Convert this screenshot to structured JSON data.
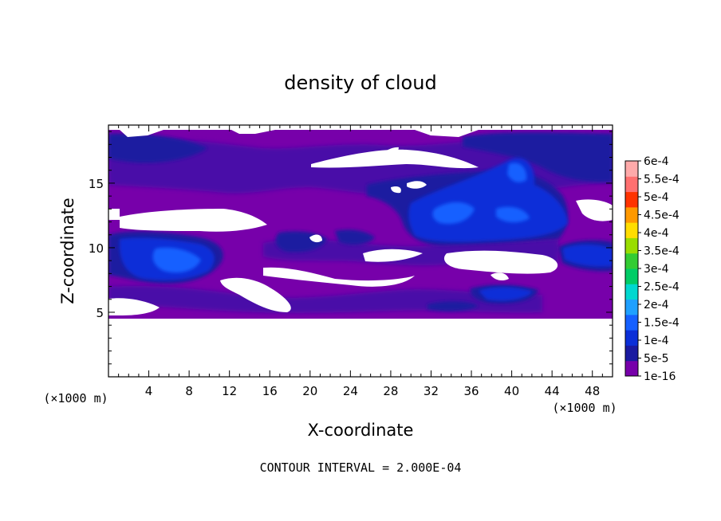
{
  "chart_data": {
    "type": "heatmap",
    "title": "density of cloud",
    "xlabel": "X-coordinate",
    "ylabel": "Z-coordinate",
    "x_unit": "(×1000 m)",
    "y_unit": "(×1000 m)",
    "xlim": [
      0,
      50
    ],
    "ylim": [
      0,
      19.5
    ],
    "x_ticks": [
      4,
      8,
      12,
      16,
      20,
      24,
      28,
      32,
      36,
      40,
      44,
      48
    ],
    "y_ticks": [
      5,
      10,
      15
    ],
    "footer": "CONTOUR INTERVAL = 2.000E-04",
    "colorbar": {
      "labels": [
        "1e-16",
        "5e-5",
        "1e-4",
        "1.5e-4",
        "2e-4",
        "2.5e-4",
        "3e-4",
        "3.5e-4",
        "4e-4",
        "4.5e-4",
        "5e-4",
        "5.5e-4",
        "6e-4"
      ],
      "colors": [
        "#7700aa",
        "#1a1aa0",
        "#0b2fd8",
        "#1560ff",
        "#1fa0ff",
        "#00d8d0",
        "#00cc66",
        "#33cc33",
        "#99dd00",
        "#ffdd00",
        "#ff9900",
        "#ff3300",
        "#ff7070",
        "#ffaaaa"
      ]
    },
    "cloud_field": {
      "base_color": "#7700aa",
      "z_range_km": [
        4.7,
        19.5
      ]
    }
  }
}
